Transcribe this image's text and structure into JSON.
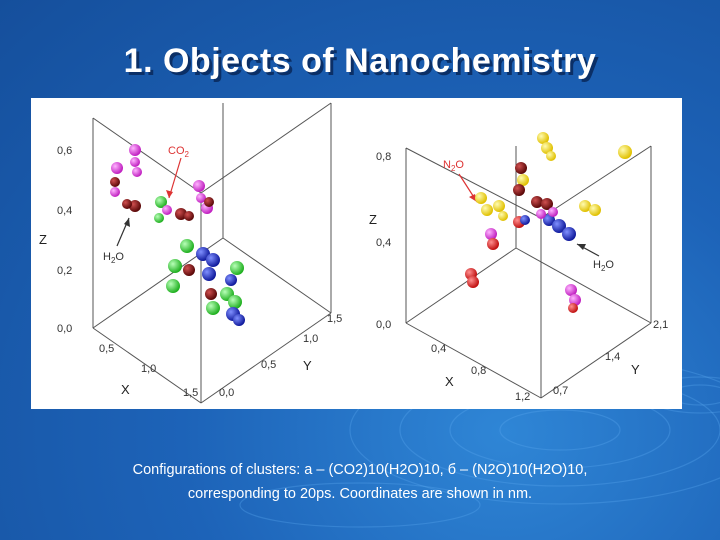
{
  "title": "1. Objects of  Nanochemistry",
  "caption": {
    "line1": "Configurations of clusters: а – (CO2)10(H2O)10, б – (N2O)10(H2O)10,",
    "line2": "corresponding to 20ps. Coordinates are shown in nm."
  },
  "panel_a": {
    "z_ticks": [
      "0,6",
      "0,4",
      "0,2",
      "0,0"
    ],
    "x_ticks": [
      "0,5",
      "1,0",
      "1,5"
    ],
    "y_ticks": [
      "0,0",
      "0,5",
      "1,0",
      "1,5"
    ],
    "z_label": "Z",
    "x_label": "X",
    "y_label": "Y",
    "label_co2": "CO",
    "label_co2_sub": "2",
    "label_h2o": "H",
    "label_h2o_sub": "2",
    "label_h2o_end": "O"
  },
  "panel_b": {
    "z_ticks": [
      "0,8",
      "0,4",
      "0,0"
    ],
    "x_ticks": [
      "0,4",
      "0,8",
      "1,2"
    ],
    "y_ticks": [
      "0,7",
      "1,4",
      "2,1"
    ],
    "z_label": "Z",
    "x_label": "X",
    "y_label": "Y",
    "label_n2o": "N",
    "label_n2o_sub": "2",
    "label_n2o_end": "O",
    "label_h2o": "H",
    "label_h2o_sub": "2",
    "label_h2o_end": "O"
  },
  "colors": {
    "background": "#1d63b8",
    "magenta": "#e040e0",
    "green": "#2ecc2e",
    "blue": "#1a2fc8",
    "darkred": "#8b1010",
    "yellow": "#f5e020",
    "red": "#e02020"
  }
}
